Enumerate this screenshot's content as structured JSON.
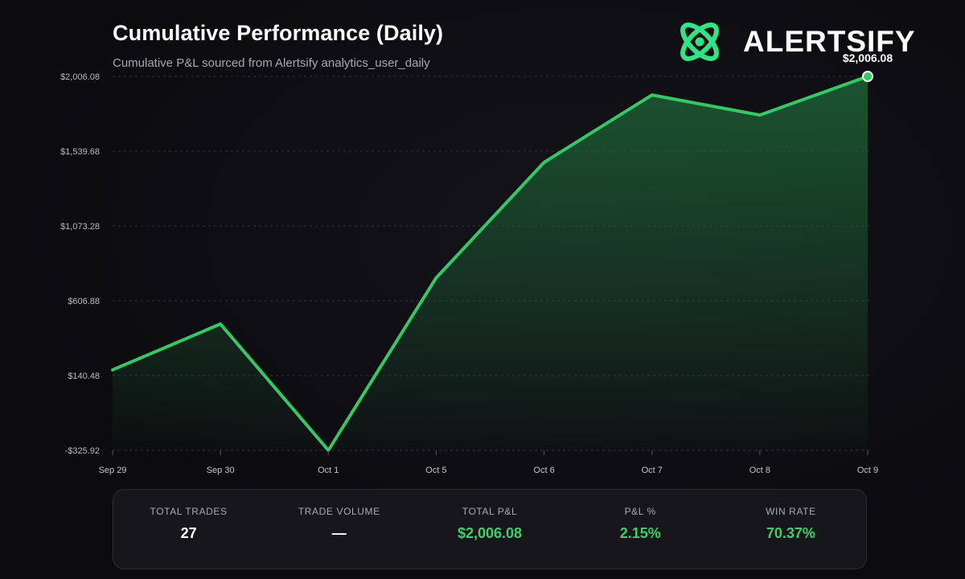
{
  "header": {
    "title": "Cumulative Performance (Daily)",
    "subtitle": "Cumulative P&L sourced from Alertsify analytics_user_daily"
  },
  "brand": {
    "name": "ALERTSIFY",
    "logo_icon": "atom-orbit-logo",
    "logo_color": "#2ee58a"
  },
  "colors": {
    "line": "#34c964",
    "area_top": "#1f6b3a",
    "grid": "#3a3a42",
    "positive_text": "#3ccf6e",
    "background": "#0f0f12"
  },
  "chart_data": {
    "type": "area",
    "title": "Cumulative Performance (Daily)",
    "subtitle": "Cumulative P&L sourced from Alertsify analytics_user_daily",
    "xlabel": "",
    "ylabel": "",
    "categories": [
      "Sep 29",
      "Sep 30",
      "Oct 1",
      "Oct 5",
      "Oct 6",
      "Oct 7",
      "Oct 8",
      "Oct 9"
    ],
    "values": [
      176,
      462,
      -325.92,
      750,
      1470,
      1890,
      1765,
      2006.08
    ],
    "ylim": [
      -325.92,
      2006.08
    ],
    "y_ticks": [
      -325.92,
      140.48,
      606.88,
      1073.28,
      1539.68,
      2006.08
    ],
    "y_tick_labels": [
      "-$325.92",
      "$140.48",
      "$606.88",
      "$1,073.28",
      "$1,539.68",
      "$2,006.08"
    ],
    "last_value_label": "$2,006.08",
    "grid": true,
    "grid_style": "dashed horizontal",
    "legend": "none"
  },
  "stats": [
    {
      "label": "TOTAL TRADES",
      "value": "27",
      "positive": false
    },
    {
      "label": "TRADE VOLUME",
      "value": "—",
      "positive": false
    },
    {
      "label": "TOTAL P&L",
      "value": "$2,006.08",
      "positive": true
    },
    {
      "label": "P&L %",
      "value": "2.15%",
      "positive": true
    },
    {
      "label": "WIN RATE",
      "value": "70.37%",
      "positive": true
    }
  ]
}
